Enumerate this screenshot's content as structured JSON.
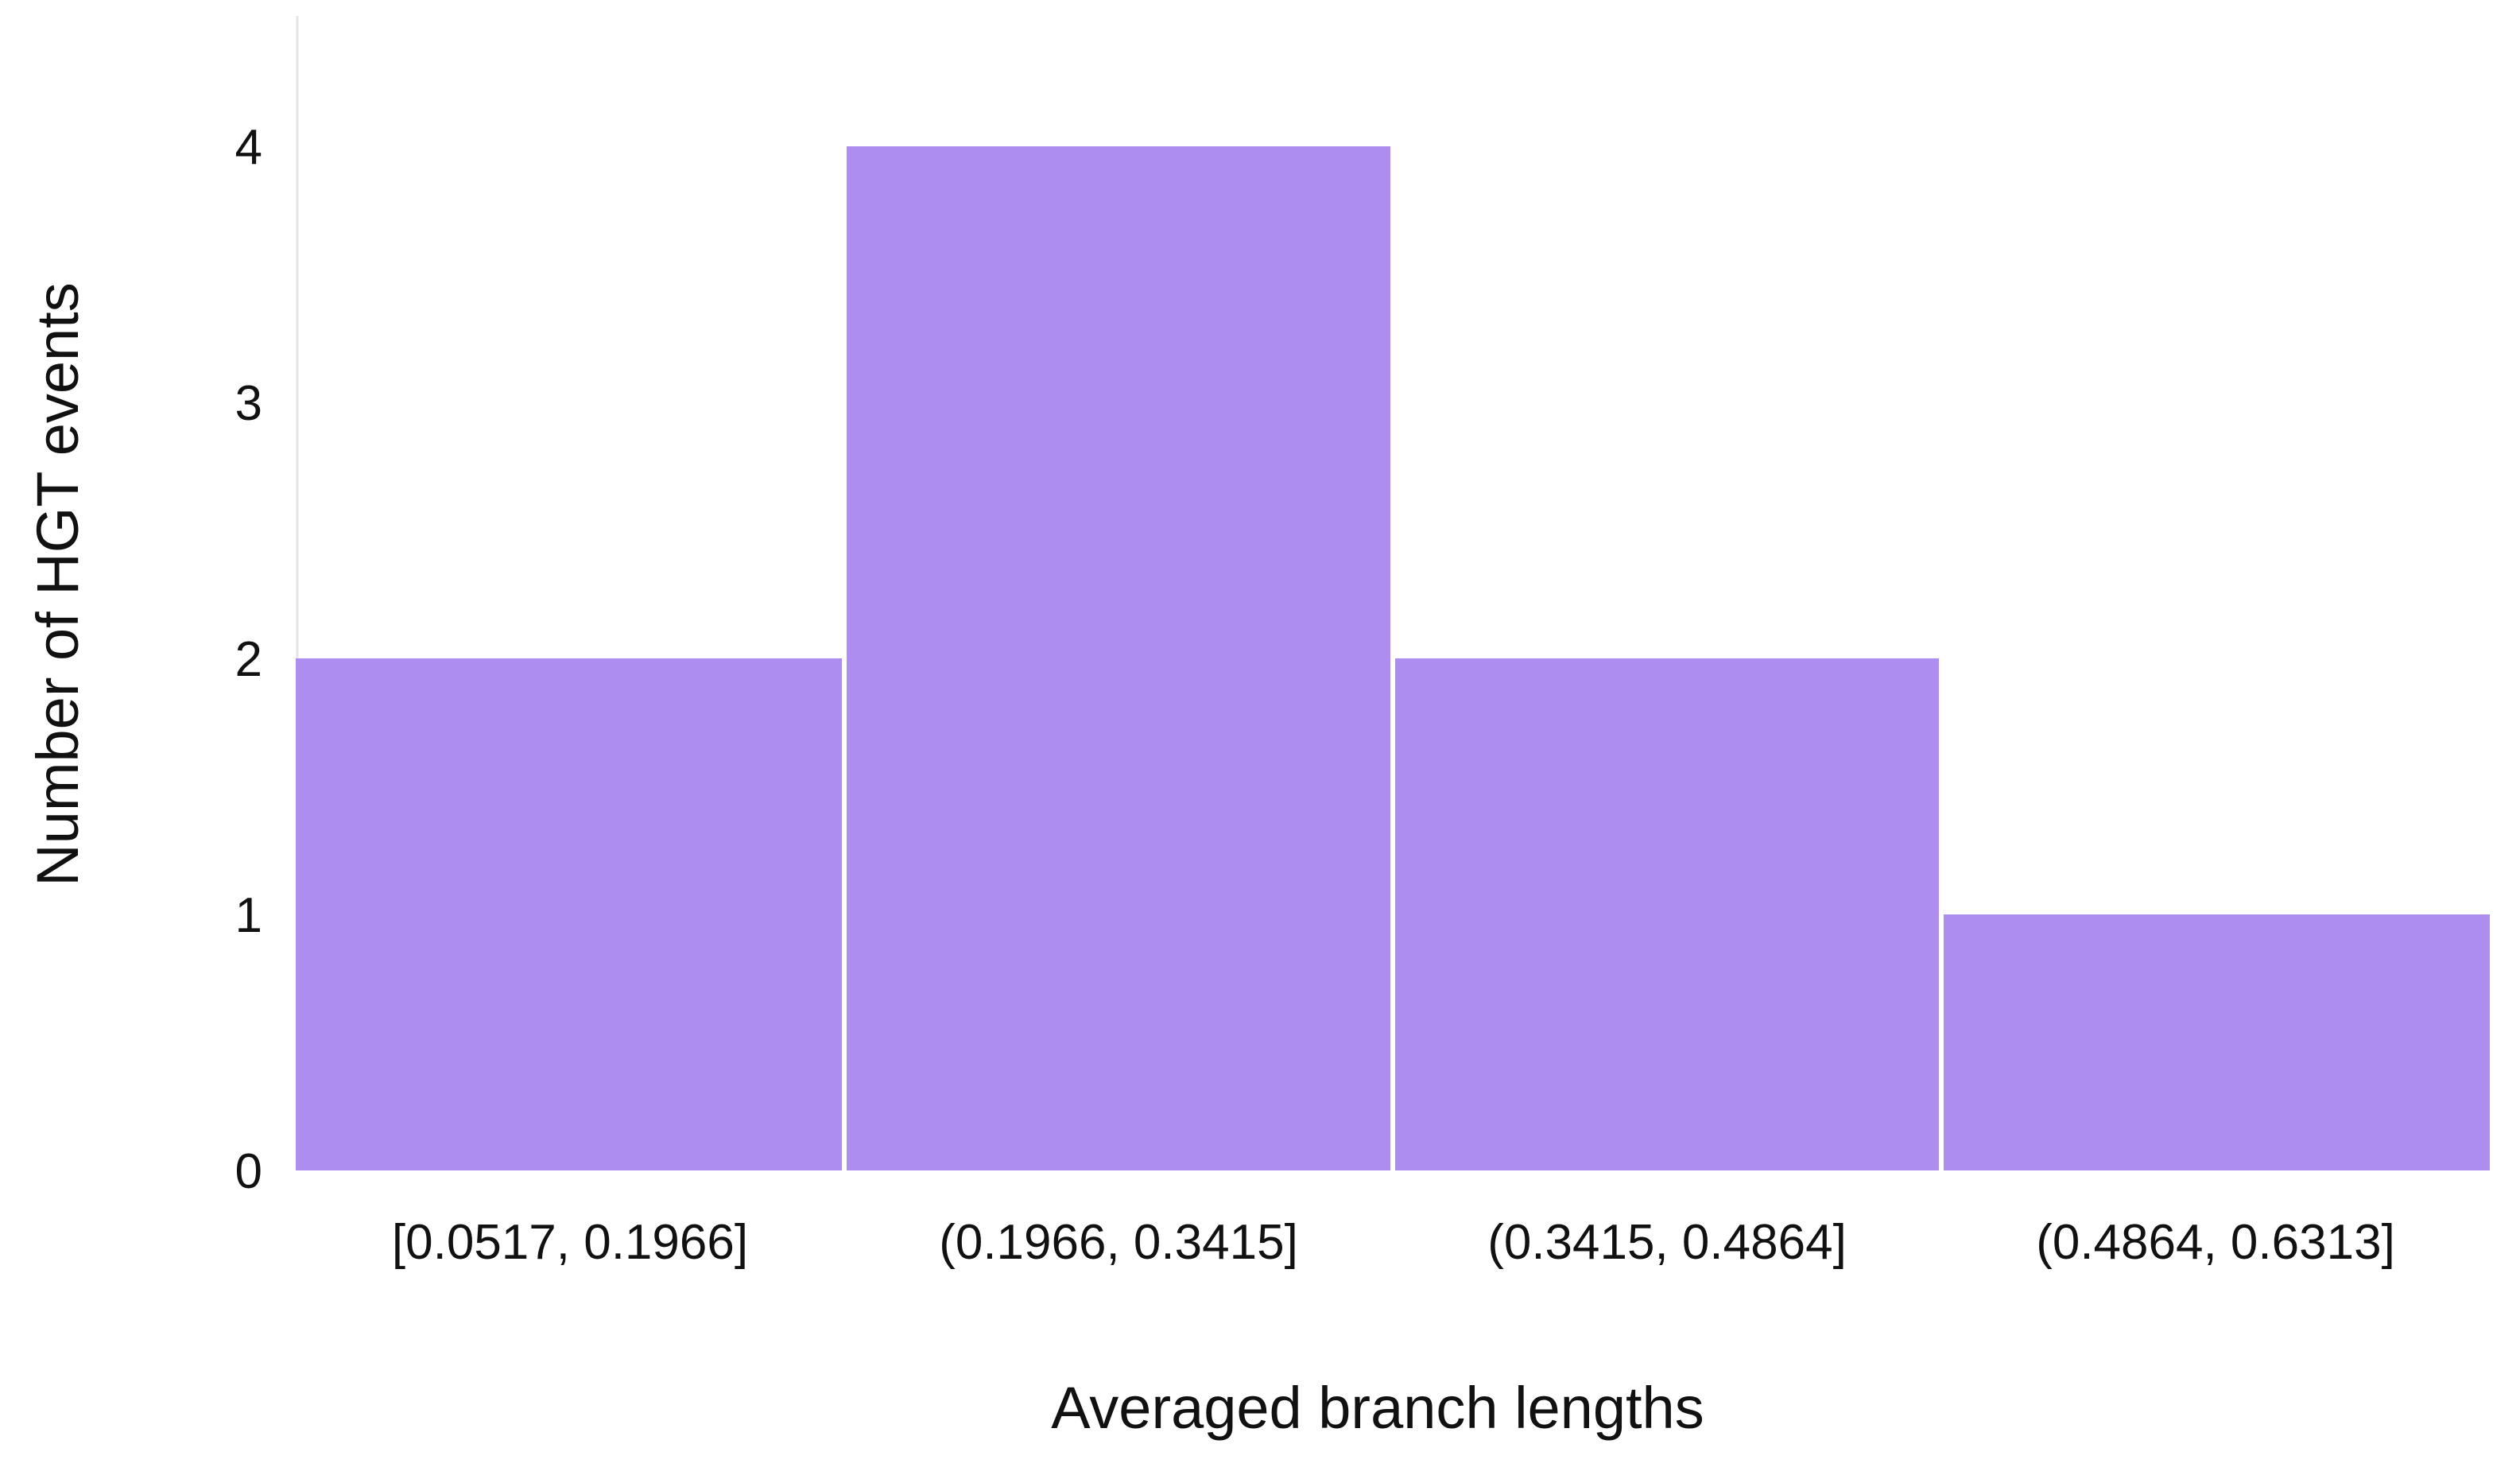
{
  "chart_data": {
    "type": "bar",
    "title": "",
    "xlabel": "Averaged branch lengths",
    "ylabel": "Number of HGT events",
    "categories": [
      "[0.0517, 0.1966]",
      "(0.1966, 0.3415]",
      "(0.3415, 0.4864]",
      "(0.4864, 0.6313]"
    ],
    "values": [
      2,
      4,
      2,
      1
    ],
    "ylim": [
      0,
      4.5
    ],
    "yticks": [
      "0",
      "1",
      "2",
      "3",
      "4"
    ],
    "grid": false,
    "legend": "none",
    "colors": {
      "bar": "#ad8ef0",
      "axis": "#e6e6e6"
    }
  }
}
